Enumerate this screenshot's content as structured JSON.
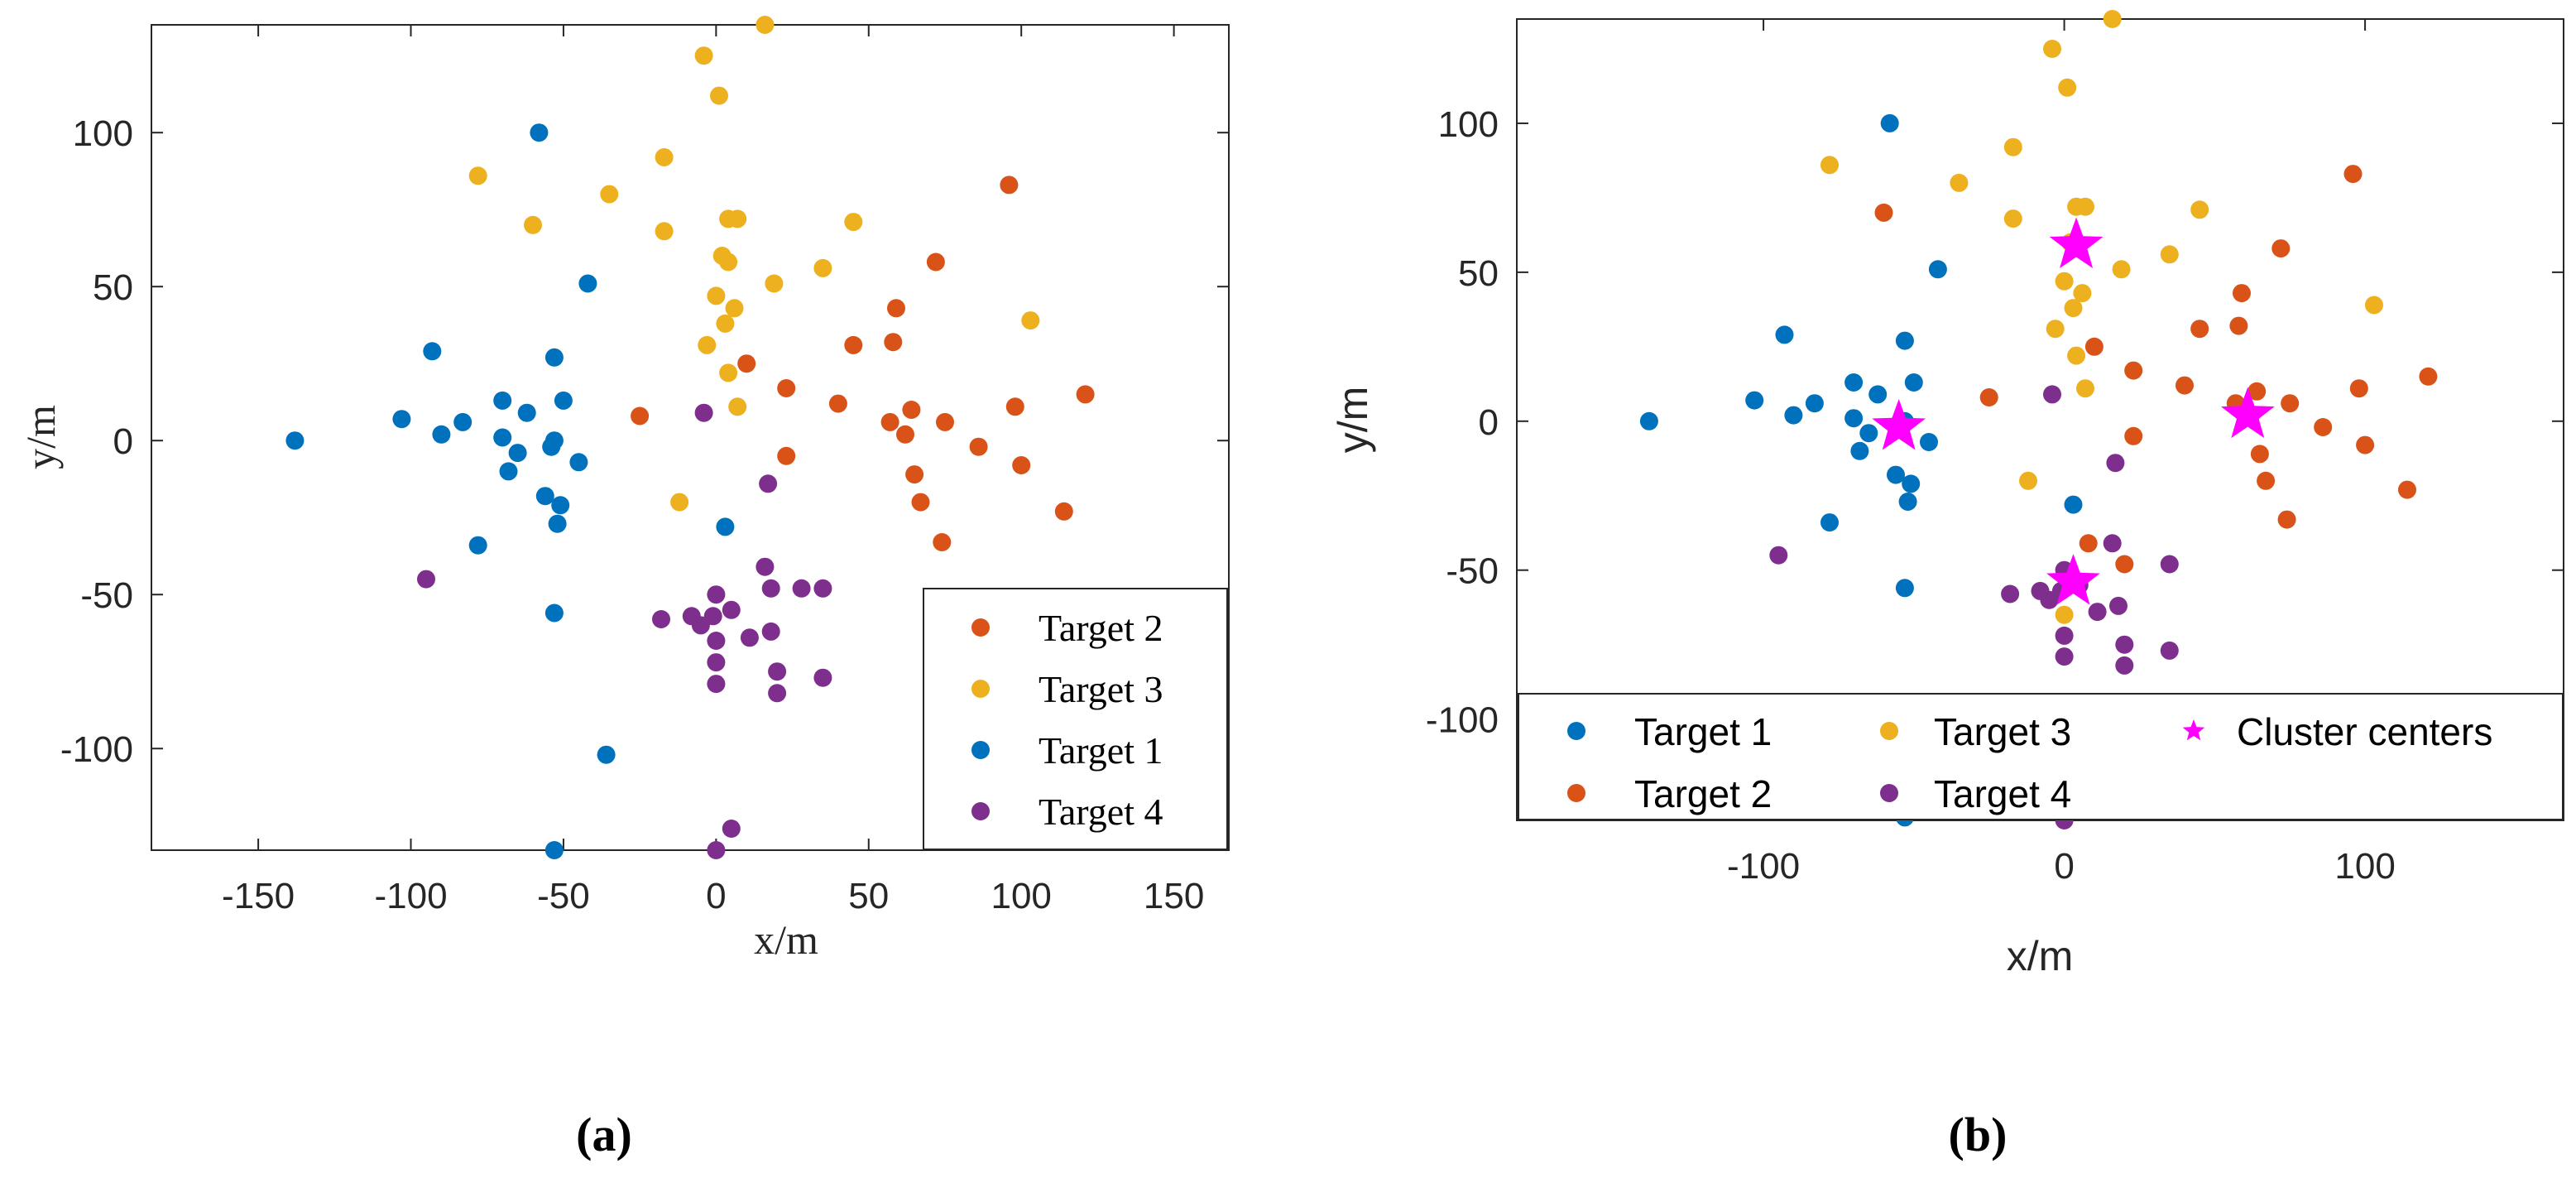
{
  "captions": {
    "a": "(a)",
    "b": "(b)"
  },
  "colors": {
    "target1": "#0072BD",
    "target2": "#D95319",
    "target3": "#EDB120",
    "target4": "#7E2F8E",
    "center": "#FF00FF"
  },
  "chart_data": [
    {
      "type": "scatter",
      "xlabel": "x/m",
      "ylabel": "y/m",
      "xlim": [
        -185,
        168
      ],
      "ylim": [
        -133,
        135
      ],
      "xticks": [
        -150,
        -100,
        -50,
        0,
        50,
        100,
        150
      ],
      "yticks": [
        -100,
        -50,
        0,
        50,
        100
      ],
      "legend_position": "bottom-right",
      "legend": [
        "Target 2",
        "Target 3",
        "Target 1",
        "Target 4"
      ],
      "series": [
        {
          "name": "Target 1",
          "key": "target1",
          "points": [
            [
              -138,
              0
            ],
            [
              -103,
              7
            ],
            [
              -93,
              29
            ],
            [
              -90,
              2
            ],
            [
              -83,
              6
            ],
            [
              -70,
              13
            ],
            [
              -70,
              1
            ],
            [
              -68,
              -10
            ],
            [
              -65,
              -4
            ],
            [
              -62,
              9
            ],
            [
              -58,
              100
            ],
            [
              -56,
              -18
            ],
            [
              -54,
              -2
            ],
            [
              -53,
              0
            ],
            [
              -53,
              27
            ],
            [
              -52,
              -27
            ],
            [
              -51,
              -21
            ],
            [
              -50,
              13
            ],
            [
              -45,
              -7
            ],
            [
              -42,
              51
            ],
            [
              -36,
              -102
            ],
            [
              -53,
              -56
            ],
            [
              -53,
              -133
            ],
            [
              -78,
              -34
            ],
            [
              3,
              -28
            ]
          ]
        },
        {
          "name": "Target 2",
          "key": "target2",
          "points": [
            [
              -25,
              8
            ],
            [
              10,
              25
            ],
            [
              23,
              17
            ],
            [
              23,
              -5
            ],
            [
              40,
              12
            ],
            [
              45,
              31
            ],
            [
              57,
              6
            ],
            [
              58,
              32
            ],
            [
              59,
              43
            ],
            [
              62,
              2
            ],
            [
              64,
              10
            ],
            [
              65,
              -11
            ],
            [
              67,
              -20
            ],
            [
              72,
              58
            ],
            [
              74,
              -33
            ],
            [
              75,
              6
            ],
            [
              86,
              -2
            ],
            [
              96,
              83
            ],
            [
              98,
              11
            ],
            [
              100,
              -8
            ],
            [
              114,
              -23
            ],
            [
              121,
              15
            ]
          ]
        },
        {
          "name": "Target 3",
          "key": "target3",
          "points": [
            [
              -78,
              86
            ],
            [
              -60,
              70
            ],
            [
              -35,
              80
            ],
            [
              -17,
              68
            ],
            [
              -17,
              92
            ],
            [
              -12,
              -20
            ],
            [
              -4,
              125
            ],
            [
              -3,
              31
            ],
            [
              0,
              47
            ],
            [
              1,
              112
            ],
            [
              2,
              60
            ],
            [
              3,
              38
            ],
            [
              4,
              72
            ],
            [
              4,
              58
            ],
            [
              6,
              43
            ],
            [
              7,
              72
            ],
            [
              7,
              11
            ],
            [
              4,
              22
            ],
            [
              16,
              135
            ],
            [
              19,
              51
            ],
            [
              35,
              56
            ],
            [
              45,
              71
            ],
            [
              103,
              39
            ]
          ]
        },
        {
          "name": "Target 4",
          "key": "target4",
          "points": [
            [
              -95,
              -45
            ],
            [
              -18,
              -58
            ],
            [
              -8,
              -57
            ],
            [
              -5,
              -60
            ],
            [
              -4,
              9
            ],
            [
              -1,
              -57
            ],
            [
              0,
              -65
            ],
            [
              0,
              -72
            ],
            [
              0,
              -79
            ],
            [
              0,
              -50
            ],
            [
              5,
              -55
            ],
            [
              5,
              -126
            ],
            [
              11,
              -64
            ],
            [
              16,
              -41
            ],
            [
              17,
              -14
            ],
            [
              18,
              -48
            ],
            [
              18,
              -62
            ],
            [
              20,
              -75
            ],
            [
              20,
              -82
            ],
            [
              28,
              -48
            ],
            [
              35,
              -48
            ],
            [
              35,
              -77
            ],
            [
              0,
              -134
            ]
          ]
        }
      ]
    },
    {
      "type": "scatter",
      "xlabel": "x/m",
      "ylabel": "y/m",
      "xlim": [
        -182,
        166
      ],
      "ylim": [
        -134,
        135
      ],
      "xticks": [
        -100,
        0,
        100
      ],
      "yticks": [
        -100,
        -50,
        0,
        50,
        100
      ],
      "legend_position": "bottom",
      "legend": [
        "Target 1",
        "Target 3",
        "Cluster centers",
        "Target 2",
        "Target 4"
      ],
      "series": [
        {
          "name": "Target 1",
          "key": "target1",
          "points": [
            [
              -138,
              0
            ],
            [
              -103,
              7
            ],
            [
              -93,
              29
            ],
            [
              -90,
              2
            ],
            [
              -83,
              6
            ],
            [
              -70,
              13
            ],
            [
              -70,
              1
            ],
            [
              -68,
              -10
            ],
            [
              -65,
              -4
            ],
            [
              -62,
              9
            ],
            [
              -58,
              100
            ],
            [
              -56,
              -18
            ],
            [
              -54,
              -2
            ],
            [
              -53,
              0
            ],
            [
              -53,
              27
            ],
            [
              -52,
              -27
            ],
            [
              -51,
              -21
            ],
            [
              -50,
              13
            ],
            [
              -45,
              -7
            ],
            [
              -42,
              51
            ],
            [
              -53,
              -56
            ],
            [
              -53,
              -133
            ],
            [
              -78,
              -34
            ],
            [
              3,
              -28
            ]
          ]
        },
        {
          "name": "Target 2",
          "key": "target2",
          "points": [
            [
              -60,
              70
            ],
            [
              -25,
              8
            ],
            [
              10,
              25
            ],
            [
              23,
              17
            ],
            [
              23,
              -5
            ],
            [
              40,
              12
            ],
            [
              45,
              31
            ],
            [
              57,
              6
            ],
            [
              58,
              32
            ],
            [
              59,
              43
            ],
            [
              62,
              2
            ],
            [
              64,
              10
            ],
            [
              65,
              -11
            ],
            [
              67,
              -20
            ],
            [
              72,
              58
            ],
            [
              74,
              -33
            ],
            [
              75,
              6
            ],
            [
              86,
              -2
            ],
            [
              96,
              83
            ],
            [
              98,
              11
            ],
            [
              100,
              -8
            ],
            [
              114,
              -23
            ],
            [
              121,
              15
            ],
            [
              8,
              -41
            ],
            [
              20,
              -48
            ]
          ]
        },
        {
          "name": "Target 3",
          "key": "target3",
          "points": [
            [
              -78,
              86
            ],
            [
              -35,
              80
            ],
            [
              -17,
              68
            ],
            [
              -17,
              92
            ],
            [
              -12,
              -20
            ],
            [
              -4,
              125
            ],
            [
              -3,
              31
            ],
            [
              0,
              47
            ],
            [
              1,
              112
            ],
            [
              2,
              60
            ],
            [
              3,
              38
            ],
            [
              4,
              72
            ],
            [
              4,
              58
            ],
            [
              6,
              43
            ],
            [
              7,
              72
            ],
            [
              7,
              11
            ],
            [
              4,
              22
            ],
            [
              16,
              135
            ],
            [
              19,
              51
            ],
            [
              35,
              56
            ],
            [
              45,
              71
            ],
            [
              103,
              39
            ],
            [
              0,
              -65
            ]
          ]
        },
        {
          "name": "Target 4",
          "key": "target4",
          "points": [
            [
              -95,
              -45
            ],
            [
              -18,
              -58
            ],
            [
              -8,
              -57
            ],
            [
              -5,
              -60
            ],
            [
              -4,
              9
            ],
            [
              -1,
              -57
            ],
            [
              0,
              -72
            ],
            [
              0,
              -79
            ],
            [
              0,
              -50
            ],
            [
              5,
              -55
            ],
            [
              11,
              -64
            ],
            [
              16,
              -41
            ],
            [
              17,
              -14
            ],
            [
              18,
              -62
            ],
            [
              20,
              -75
            ],
            [
              20,
              -82
            ],
            [
              35,
              -48
            ],
            [
              35,
              -77
            ],
            [
              0,
              -134
            ]
          ]
        }
      ],
      "centers": [
        [
          4,
          59
        ],
        [
          -55,
          -2
        ],
        [
          61,
          2
        ],
        [
          3,
          -54
        ]
      ]
    }
  ]
}
